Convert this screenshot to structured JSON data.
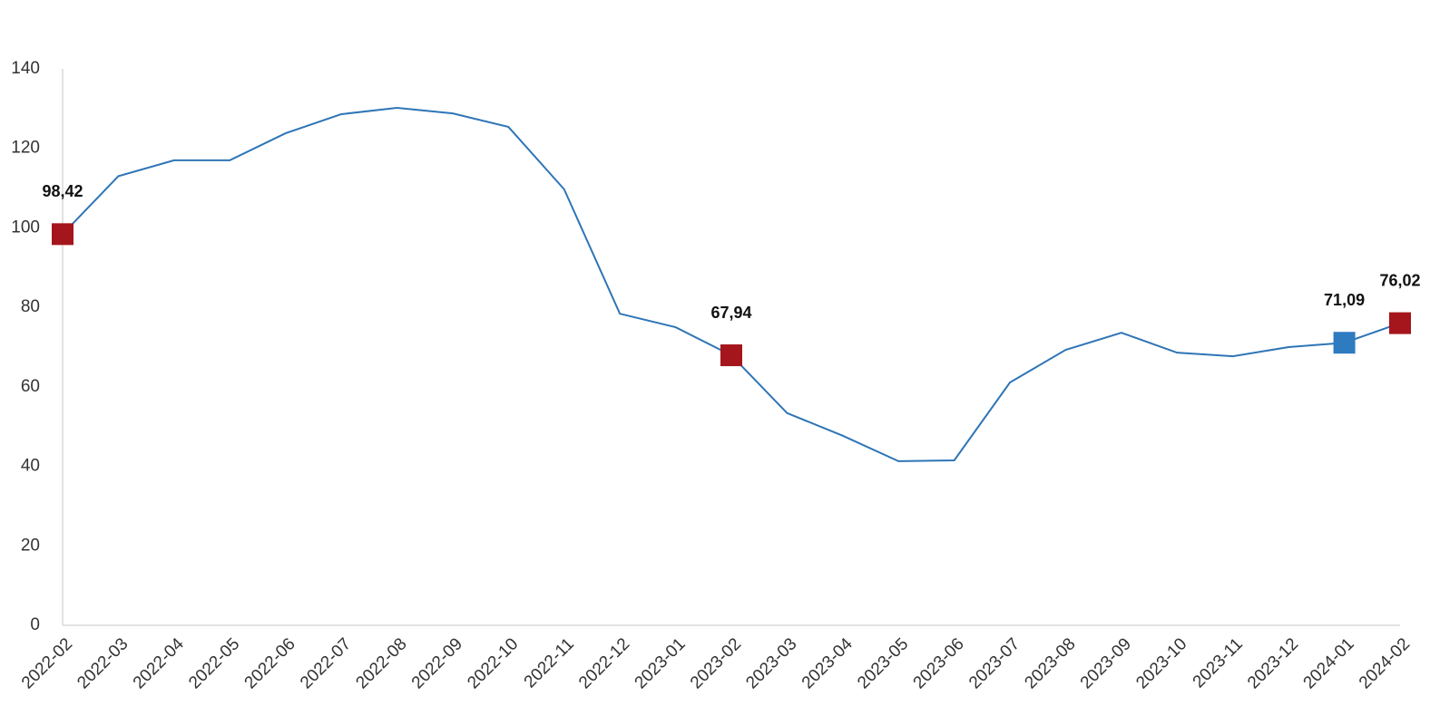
{
  "chart_data": {
    "type": "line",
    "categories": [
      "2022-02",
      "2022-03",
      "2022-04",
      "2022-05",
      "2022-06",
      "2022-07",
      "2022-08",
      "2022-09",
      "2022-10",
      "2022-11",
      "2022-12",
      "2023-01",
      "2023-02",
      "2023-03",
      "2023-04",
      "2023-05",
      "2023-06",
      "2023-07",
      "2023-08",
      "2023-09",
      "2023-10",
      "2023-11",
      "2023-12",
      "2024-01",
      "2024-02"
    ],
    "values": [
      98.42,
      113,
      117,
      117,
      123.8,
      128.6,
      130.2,
      128.8,
      125.4,
      109.7,
      78.4,
      75,
      67.94,
      53.4,
      47.7,
      41.3,
      41.5,
      61.1,
      69.3,
      73.6,
      68.6,
      67.7,
      70,
      71.09,
      76.02
    ],
    "value_labels": [
      "98,42",
      null,
      null,
      null,
      null,
      null,
      null,
      null,
      null,
      null,
      null,
      null,
      "67,94",
      null,
      null,
      null,
      null,
      null,
      null,
      null,
      null,
      null,
      null,
      "71,09",
      "76,02"
    ],
    "marker_colors": [
      "#a5151c",
      null,
      null,
      null,
      null,
      null,
      null,
      null,
      null,
      null,
      null,
      null,
      "#a5151c",
      null,
      null,
      null,
      null,
      null,
      null,
      null,
      null,
      null,
      null,
      "#2e7bbf",
      "#a5151c"
    ],
    "color": "#2e75b6",
    "ylim": [
      0,
      140
    ],
    "yticks": [
      0,
      20,
      40,
      60,
      80,
      100,
      120,
      140
    ],
    "grid": false
  }
}
